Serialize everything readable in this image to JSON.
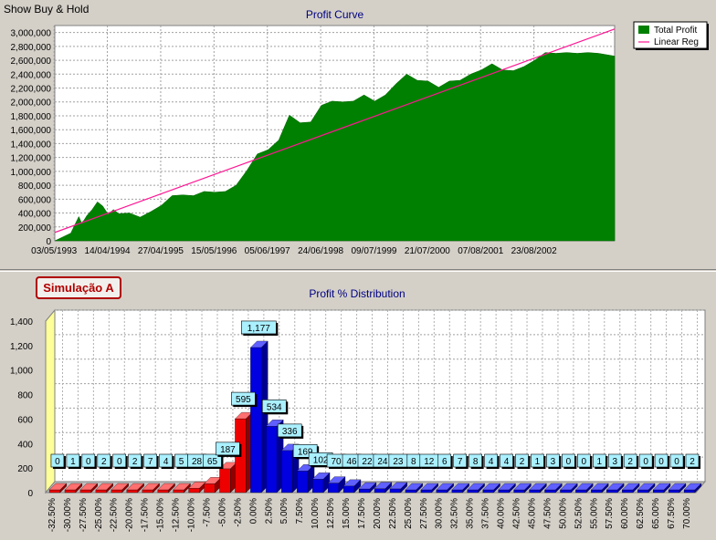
{
  "header": {
    "show_buy_hold": "Show Buy & Hold"
  },
  "simulation_label": "Simulação A",
  "colors": {
    "profit_fill": "#008000",
    "regression_line": "#ff1493",
    "loss_bar": "#ee0000",
    "gain_bar": "#0000e0",
    "label_box": "#aaf0ff"
  },
  "chart_data": [
    {
      "type": "area",
      "title": "Profit Curve",
      "legend": [
        {
          "name": "Total Profit",
          "color": "#008000",
          "kind": "area"
        },
        {
          "name": "Linear Reg",
          "color": "#ff1493",
          "kind": "line"
        }
      ],
      "legend_position": "top-right",
      "xlabel": "",
      "ylabel": "",
      "x_ticks": [
        "03/05/1993",
        "14/04/1994",
        "27/04/1995",
        "15/05/1996",
        "05/06/1997",
        "24/06/1998",
        "09/07/1999",
        "21/07/2000",
        "07/08/2001",
        "23/08/2002"
      ],
      "y_ticks": [
        "0",
        "200,000",
        "400,000",
        "600,000",
        "800,000",
        "1,000,000",
        "1,200,000",
        "1,400,000",
        "1,600,000",
        "1,800,000",
        "2,000,000",
        "2,200,000",
        "2,400,000",
        "2,600,000",
        "2,800,000",
        "3,000,000"
      ],
      "ylim": [
        0,
        3100000
      ],
      "xlim": [
        0,
        10.5
      ],
      "grid": true,
      "series": [
        {
          "name": "Total Profit",
          "x": [
            0,
            0.3,
            0.45,
            0.5,
            0.55,
            0.6,
            0.7,
            0.8,
            0.9,
            1.0,
            1.1,
            1.2,
            1.4,
            1.6,
            1.8,
            2.0,
            2.2,
            2.4,
            2.6,
            2.8,
            3.0,
            3.2,
            3.4,
            3.6,
            3.8,
            4.0,
            4.2,
            4.4,
            4.6,
            4.8,
            5.0,
            5.2,
            5.4,
            5.6,
            5.8,
            6.0,
            6.2,
            6.4,
            6.6,
            6.8,
            7.0,
            7.2,
            7.4,
            7.6,
            7.8,
            8.0,
            8.2,
            8.4,
            8.6,
            8.8,
            9.0,
            9.2,
            9.4,
            9.6,
            9.8,
            10.0,
            10.2,
            10.5
          ],
          "y": [
            0,
            150000,
            350000,
            300000,
            300000,
            400000,
            450000,
            600000,
            500000,
            420000,
            450000,
            430000,
            400000,
            380000,
            420000,
            550000,
            650000,
            700000,
            650000,
            750000,
            700000,
            750000,
            800000,
            1050000,
            1250000,
            1350000,
            1450000,
            1850000,
            1700000,
            1750000,
            1950000,
            2050000,
            2000000,
            2050000,
            2100000,
            2050000,
            2100000,
            2300000,
            2400000,
            2350000,
            2300000,
            2250000,
            2300000,
            2350000,
            2400000,
            2500000,
            2550000,
            2500000,
            2450000,
            2550000,
            2600000,
            2750000,
            2700000,
            2750000,
            2700000,
            2750000,
            2700000,
            2700000
          ]
        },
        {
          "name": "Linear Reg",
          "x": [
            0,
            10.5
          ],
          "y": [
            120000,
            3050000
          ]
        }
      ]
    },
    {
      "type": "bar",
      "title": "Profit % Distribution",
      "xlabel": "",
      "ylabel": "",
      "categories": [
        "-32.50%",
        "-30.00%",
        "-27.50%",
        "-25.00%",
        "-22.50%",
        "-20.00%",
        "-17.50%",
        "-15.00%",
        "-12.50%",
        "-10.00%",
        "-7.50%",
        "-5.00%",
        "-2.50%",
        "0.00%",
        "2.50%",
        "5.00%",
        "7.50%",
        "10.00%",
        "12.50%",
        "15.00%",
        "17.50%",
        "20.00%",
        "22.50%",
        "25.00%",
        "27.50%",
        "30.00%",
        "32.50%",
        "35.00%",
        "37.50%",
        "40.00%",
        "42.50%",
        "45.00%",
        "47.50%",
        "50.00%",
        "52.50%",
        "55.00%",
        "57.50%",
        "60.00%",
        "62.50%",
        "65.00%",
        "67.50%",
        "70.00%"
      ],
      "values": [
        0,
        1,
        0,
        2,
        0,
        2,
        7,
        4,
        5,
        28,
        65,
        187,
        595,
        1177,
        534,
        336,
        169,
        102,
        70,
        46,
        22,
        24,
        23,
        8,
        12,
        6,
        7,
        8,
        4,
        4,
        2,
        1,
        3,
        0,
        0,
        1,
        3,
        2,
        0,
        0,
        0,
        2
      ],
      "value_labels": [
        "0",
        "1",
        "0",
        "2",
        "0",
        "2",
        "7",
        "4",
        "5",
        "28",
        "65",
        "187",
        "595",
        "1,177",
        "534",
        "336",
        "169",
        "102",
        "70",
        "46",
        "22",
        "24",
        "23",
        "8",
        "12",
        "6",
        "7",
        "8",
        "4",
        "4",
        "2",
        "1",
        "3",
        "0",
        "0",
        "1",
        "3",
        "2",
        "0",
        "0",
        "0",
        "2"
      ],
      "y_ticks": [
        "0",
        "200",
        "400",
        "600",
        "800",
        "1,000",
        "1,200",
        "1,400"
      ],
      "ylim": [
        0,
        1400
      ],
      "grid": true,
      "color_rule": "negative categories red, zero and positive categories blue"
    }
  ]
}
